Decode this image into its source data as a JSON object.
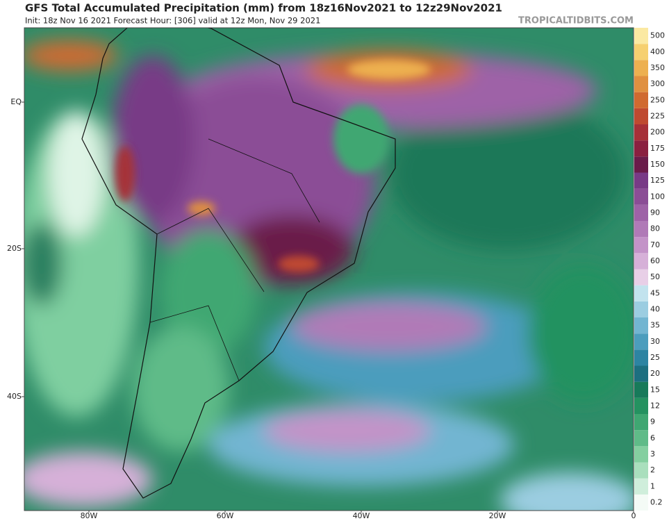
{
  "header": {
    "title": "GFS Total Accumulated Precipitation (mm) from 18z16Nov2021 to 12z29Nov2021",
    "subtitle": "Init: 18z Nov 16 2021   Forecast Hour: [306]   valid at 12z Mon, Nov 29 2021",
    "source": "TROPICALTIDBITS.COM"
  },
  "map": {
    "lat_labels": [
      "EQ",
      "20S",
      "40S"
    ],
    "lon_labels": [
      "80W",
      "60W",
      "40W",
      "20W",
      "0"
    ]
  },
  "colorbar": {
    "levels": [
      {
        "label": "0.2",
        "color": "#f4fbf6"
      },
      {
        "label": "1",
        "color": "#cfeedb"
      },
      {
        "label": "2",
        "color": "#a9dfbd"
      },
      {
        "label": "3",
        "color": "#84cfa0"
      },
      {
        "label": "6",
        "color": "#5fbb88"
      },
      {
        "label": "9",
        "color": "#3fa772"
      },
      {
        "label": "12",
        "color": "#249260"
      },
      {
        "label": "15",
        "color": "#177a5a"
      },
      {
        "label": "20",
        "color": "#1d6f80"
      },
      {
        "label": "25",
        "color": "#2d84a2"
      },
      {
        "label": "30",
        "color": "#4c9dbd"
      },
      {
        "label": "35",
        "color": "#72b5d1"
      },
      {
        "label": "40",
        "color": "#9bcde1"
      },
      {
        "label": "45",
        "color": "#c2e3ee"
      },
      {
        "label": "50",
        "color": "#e8cfe7"
      },
      {
        "label": "60",
        "color": "#d6b0d8"
      },
      {
        "label": "70",
        "color": "#c393c8"
      },
      {
        "label": "80",
        "color": "#b07ab7"
      },
      {
        "label": "90",
        "color": "#9e62a7"
      },
      {
        "label": "100",
        "color": "#8b4d96"
      },
      {
        "label": "125",
        "color": "#783a86"
      },
      {
        "label": "150",
        "color": "#6a1c4a"
      },
      {
        "label": "175",
        "color": "#8a2040"
      },
      {
        "label": "200",
        "color": "#a63038"
      },
      {
        "label": "225",
        "color": "#bf4a30"
      },
      {
        "label": "250",
        "color": "#d06a30"
      },
      {
        "label": "300",
        "color": "#e09040"
      },
      {
        "label": "350",
        "color": "#edb050"
      },
      {
        "label": "400",
        "color": "#f6d070"
      },
      {
        "label": "500",
        "color": "#fbe9a2"
      }
    ]
  }
}
